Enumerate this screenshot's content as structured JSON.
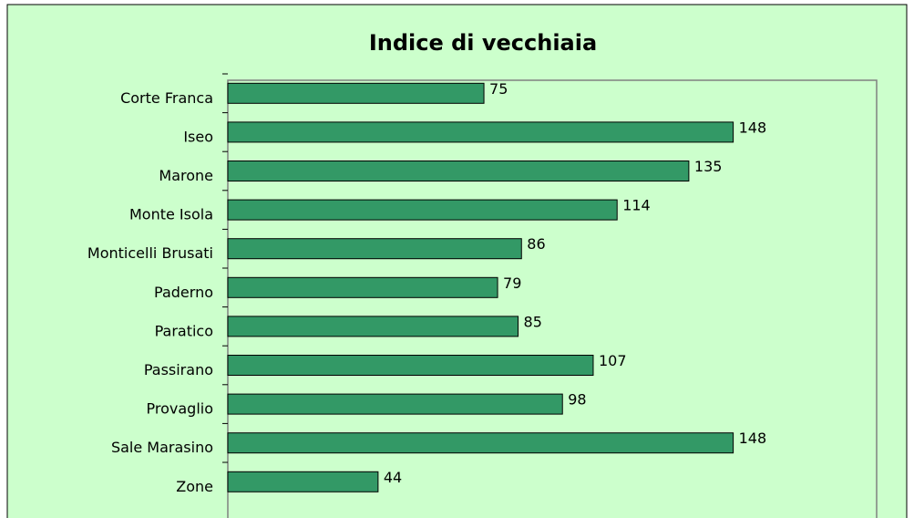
{
  "chart_data": {
    "type": "bar",
    "orientation": "horizontal",
    "title": "Indice di vecchiaia",
    "categories": [
      "Corte Franca",
      "Iseo",
      "Marone",
      "Monte Isola",
      "Monticelli Brusati",
      "Paderno",
      "Paratico",
      "Passirano",
      "Provaglio",
      "Sale Marasino",
      "Zone"
    ],
    "values": [
      75,
      148,
      135,
      114,
      86,
      79,
      85,
      107,
      98,
      148,
      44
    ],
    "color": "#339966",
    "xlim": [
      0,
      190
    ]
  }
}
